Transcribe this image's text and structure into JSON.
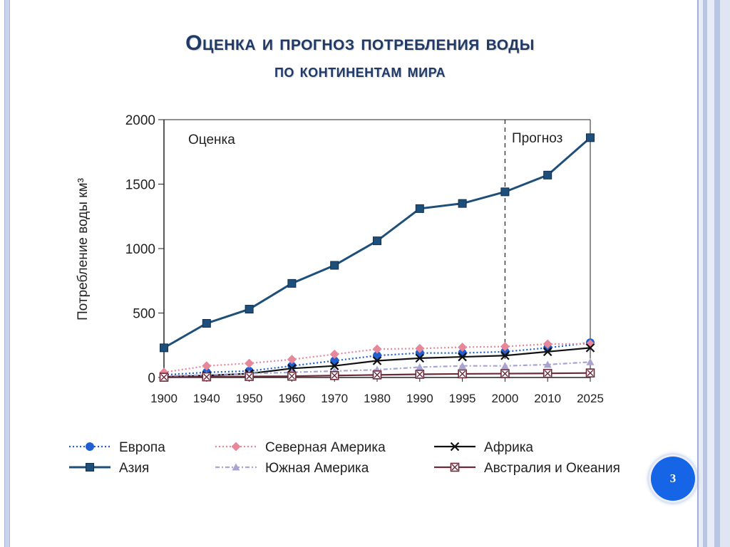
{
  "slide": {
    "title_line1": "Оценка и прогноз потребления воды",
    "title_line2": "по континентам мира",
    "page_number": "3"
  },
  "colors": {
    "europe": "#1f5fd0",
    "asia": "#1e4f7a",
    "north_america": "#e6879a",
    "south_america": "#a8a4cf",
    "africa": "#111111",
    "australia": "#6b2a3a",
    "title": "#1f3a66",
    "badge": "#1565e6"
  },
  "chart_data": {
    "type": "line",
    "ylabel": "Потребление воды км³",
    "ylim": [
      0,
      2000
    ],
    "yticks": [
      "0",
      "500",
      "1000",
      "1500",
      "2000"
    ],
    "ytick_values": [
      0,
      500,
      1000,
      1500,
      2000
    ],
    "categories": [
      "1900",
      "1940",
      "1950",
      "1960",
      "1970",
      "1980",
      "1990",
      "1995",
      "2000",
      "2010",
      "2025"
    ],
    "annotations": {
      "estimate": "Оценка",
      "forecast": "Прогноз",
      "divider_at": "2000"
    },
    "legend_position": "bottom",
    "series": [
      {
        "name": "Европа",
        "key": "europe",
        "style": "dotted",
        "marker": "circle",
        "values": [
          20,
          40,
          50,
          90,
          130,
          170,
          190,
          190,
          200,
          230,
          270
        ]
      },
      {
        "name": "Северная Америка",
        "key": "north_america",
        "style": "dotted",
        "marker": "diamond",
        "values": [
          40,
          90,
          110,
          140,
          180,
          220,
          225,
          235,
          240,
          260,
          260
        ]
      },
      {
        "name": "Африка",
        "key": "africa",
        "style": "solid",
        "marker": "x",
        "values": [
          5,
          15,
          30,
          70,
          90,
          130,
          150,
          160,
          170,
          200,
          230
        ]
      },
      {
        "name": "Азия",
        "key": "asia",
        "style": "solid",
        "marker": "square",
        "values": [
          230,
          420,
          530,
          730,
          870,
          1060,
          1310,
          1350,
          1440,
          1570,
          1860
        ]
      },
      {
        "name": "Южная Америка",
        "key": "south_america",
        "style": "dashdot",
        "marker": "triangle",
        "values": [
          10,
          20,
          30,
          40,
          50,
          60,
          80,
          90,
          90,
          100,
          120
        ]
      },
      {
        "name": "Австралия и Океания",
        "key": "australia",
        "style": "solid",
        "marker": "box-x",
        "values": [
          2,
          5,
          8,
          10,
          15,
          20,
          25,
          28,
          30,
          32,
          35
        ]
      }
    ]
  }
}
